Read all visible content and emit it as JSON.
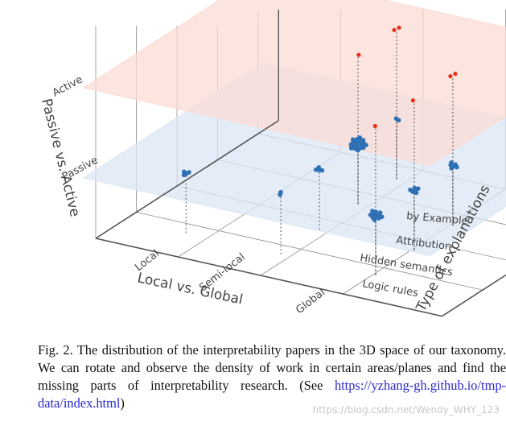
{
  "chart_data": {
    "type": "scatter3d",
    "title": "",
    "axes": {
      "x": {
        "label": "Local vs. Global",
        "ticks": [
          "Local",
          "Semi-local",
          "Global"
        ]
      },
      "y": {
        "label": "Type of explanations",
        "ticks": [
          "Logic rules",
          "Hidden semantics",
          "Attribution",
          "by Example"
        ]
      },
      "z": {
        "label": "Passive vs. Active",
        "ticks": [
          "Passive",
          "Active"
        ]
      }
    },
    "planes": [
      {
        "name": "Passive",
        "color": "#dbe6f5"
      },
      {
        "name": "Active",
        "color": "#fbdcd4"
      }
    ],
    "series": [
      {
        "name": "Active",
        "color": "#e8301c",
        "points": [
          {
            "local_global": "Semi-local",
            "type": "by Example",
            "count": 2
          },
          {
            "local_global": "Semi-local",
            "type": "Attribution",
            "count": 1
          },
          {
            "local_global": "Global",
            "type": "Logic rules",
            "count": 1
          },
          {
            "local_global": "Global",
            "type": "Hidden semantics",
            "count": 1
          },
          {
            "local_global": "Global",
            "type": "Attribution",
            "count": 2
          }
        ]
      },
      {
        "name": "Passive",
        "color": "#2f70b5",
        "points": [
          {
            "local_global": "Local",
            "type": "Logic rules",
            "count": 4
          },
          {
            "local_global": "Semi-local",
            "type": "Logic rules",
            "count": 2
          },
          {
            "local_global": "Semi-local",
            "type": "Attribution",
            "count": 20
          },
          {
            "local_global": "Semi-local",
            "type": "by Example",
            "count": 2
          },
          {
            "local_global": "Global",
            "type": "Logic rules",
            "count": 12
          },
          {
            "local_global": "Global",
            "type": "Hidden semantics",
            "count": 6
          },
          {
            "local_global": "Global",
            "type": "Attribution",
            "count": 6
          },
          {
            "local_global": "Semi-local",
            "type": "Hidden semantics",
            "count": 4
          }
        ]
      }
    ]
  },
  "caption": {
    "text": "Fig. 2.  The distribution of the interpretability papers in the 3D space of our taxonomy. We can rotate and observe the density of work in certain areas/planes and find the missing parts of interpretability research. (See ",
    "url": "https://yzhang-gh.github.io/tmp-data/index.html",
    "after": ")"
  },
  "watermark": "https://blog.csdn.net/Wendy_WHY_123"
}
